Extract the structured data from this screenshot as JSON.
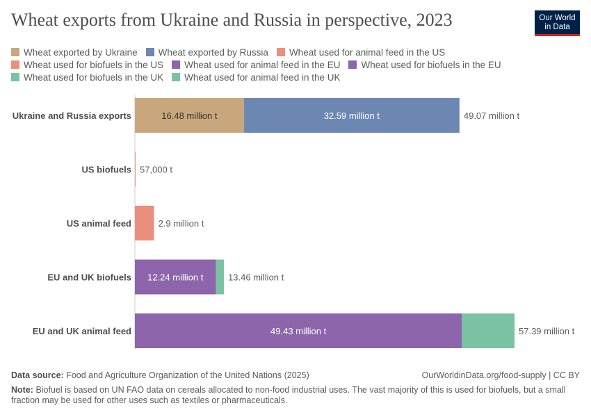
{
  "title": "Wheat exports from Ukraine and Russia in perspective, 2023",
  "logo": "Our World in Data",
  "legend": [
    {
      "label": "Wheat exported by Ukraine",
      "color": "#c9a77c"
    },
    {
      "label": "Wheat exported by Russia",
      "color": "#6d87b3"
    },
    {
      "label": "Wheat used for animal feed in the US",
      "color": "#ec8e7e"
    },
    {
      "label": "Wheat used for biofuels in the US",
      "color": "#ec8e7e"
    },
    {
      "label": "Wheat used for animal feed in the EU",
      "color": "#8c65aa"
    },
    {
      "label": "Wheat used for biofuels in the EU",
      "color": "#8c65aa"
    },
    {
      "label": "Wheat used for biofuels in the UK",
      "color": "#7bc1a3"
    },
    {
      "label": "Wheat used for animal feed in the UK",
      "color": "#7bc1a3"
    }
  ],
  "chart_data": {
    "type": "bar",
    "orientation": "horizontal",
    "stacked": true,
    "unit": "million t",
    "categories": [
      "Ukraine and Russia exports",
      "US biofuels",
      "US animal feed",
      "EU and UK biofuels",
      "EU and UK animal feed"
    ],
    "rows": [
      {
        "segments": [
          {
            "series": "Wheat exported by Ukraine",
            "value": 16.48,
            "label": "16.48 million t"
          },
          {
            "series": "Wheat exported by Russia",
            "value": 32.59,
            "label": "32.59 million t"
          }
        ],
        "total_label": "49.07 million t"
      },
      {
        "segments": [
          {
            "series": "Wheat used for biofuels in the US",
            "value": 0.057,
            "label": ""
          }
        ],
        "total_label": "57,000 t"
      },
      {
        "segments": [
          {
            "series": "Wheat used for animal feed in the US",
            "value": 2.9,
            "label": ""
          }
        ],
        "total_label": "2.9 million t"
      },
      {
        "segments": [
          {
            "series": "Wheat used for biofuels in the EU",
            "value": 12.24,
            "label": "12.24 million t"
          },
          {
            "series": "Wheat used for biofuels in the UK",
            "value": 1.22,
            "label": ""
          }
        ],
        "total_label": "13.46 million t"
      },
      {
        "segments": [
          {
            "series": "Wheat used for animal feed in the EU",
            "value": 49.43,
            "label": "49.43 million t"
          },
          {
            "series": "Wheat used for animal feed in the UK",
            "value": 7.96,
            "label": ""
          }
        ],
        "total_label": "57.39 million t"
      }
    ],
    "xlim": [
      0,
      57.39
    ]
  },
  "footer": {
    "source_label": "Data source:",
    "source": "Food and Agriculture Organization of the United Nations (2025)",
    "url": "OurWorldinData.org/food-supply | CC BY",
    "note_label": "Note:",
    "note": "Biofuel is based on UN FAO data on cereals allocated to non-food industrial uses. The vast majority of this is used for biofuels, but a small fraction may be used for other uses such as textiles or pharmaceuticals."
  }
}
